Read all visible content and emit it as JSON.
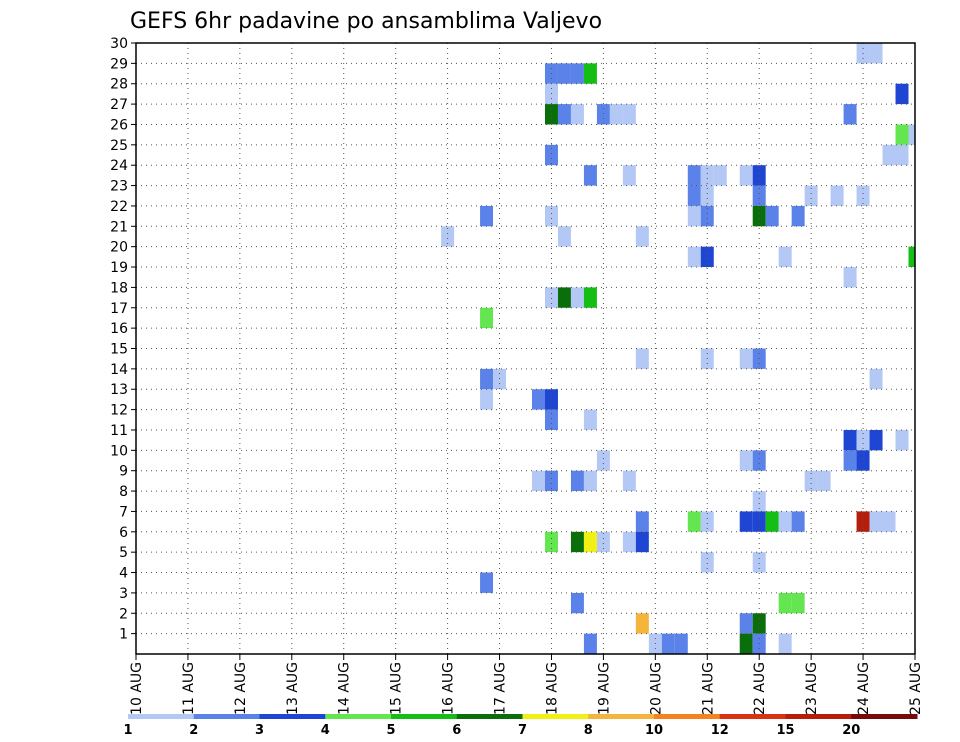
{
  "chart_data": {
    "type": "heatmap",
    "title": "GEFS 6hr padavine po ansamblima Valjevo",
    "xlabel": "",
    "ylabel": "",
    "x_tick_labels": [
      "10 AUG",
      "11 AUG",
      "12 AUG",
      "13 AUG",
      "14 AUG",
      "15 AUG",
      "16 AUG",
      "17 AUG",
      "18 AUG",
      "19 AUG",
      "20 AUG",
      "21 AUG",
      "22 AUG",
      "23 AUG",
      "24 AUG",
      "25 AUG"
    ],
    "xlim": [
      0,
      15
    ],
    "y_tick_labels": [
      "1",
      "2",
      "3",
      "4",
      "5",
      "6",
      "7",
      "8",
      "9",
      "10",
      "11",
      "12",
      "13",
      "14",
      "15",
      "16",
      "17",
      "18",
      "19",
      "20",
      "21",
      "22",
      "23",
      "24",
      "25",
      "26",
      "27",
      "28",
      "29",
      "30"
    ],
    "ylim": [
      0,
      30
    ],
    "grid": true,
    "step_days": 0.25,
    "colorbar": {
      "labels": [
        "1",
        "2",
        "3",
        "4",
        "5",
        "6",
        "7",
        "8",
        "10",
        "12",
        "15",
        "20"
      ],
      "colors": [
        "#b4c8f5",
        "#5a82e8",
        "#1e46d2",
        "#64e650",
        "#14be14",
        "#0a6e0a",
        "#f0f014",
        "#f5b43c",
        "#f5821e",
        "#dc3214",
        "#b41e0a",
        "#780a0a"
      ]
    },
    "cells": [
      {
        "x": 14.0,
        "y": 30,
        "level": 1
      },
      {
        "x": 14.25,
        "y": 30,
        "level": 1
      },
      {
        "x": 8.0,
        "y": 29,
        "level": 2
      },
      {
        "x": 8.25,
        "y": 29,
        "level": 2
      },
      {
        "x": 8.5,
        "y": 29,
        "level": 2
      },
      {
        "x": 8.75,
        "y": 29,
        "level": 5
      },
      {
        "x": 8.0,
        "y": 28,
        "level": 1
      },
      {
        "x": 14.75,
        "y": 28,
        "level": 3
      },
      {
        "x": 8.0,
        "y": 27,
        "level": 6
      },
      {
        "x": 8.25,
        "y": 27,
        "level": 2
      },
      {
        "x": 8.5,
        "y": 27,
        "level": 1
      },
      {
        "x": 9.0,
        "y": 27,
        "level": 2
      },
      {
        "x": 9.25,
        "y": 27,
        "level": 1
      },
      {
        "x": 9.5,
        "y": 27,
        "level": 1
      },
      {
        "x": 13.75,
        "y": 27,
        "level": 2
      },
      {
        "x": 14.75,
        "y": 26,
        "level": 4
      },
      {
        "x": 15.0,
        "y": 26,
        "level": 1
      },
      {
        "x": 8.0,
        "y": 25,
        "level": 2
      },
      {
        "x": 14.5,
        "y": 25,
        "level": 1
      },
      {
        "x": 14.75,
        "y": 25,
        "level": 1
      },
      {
        "x": 8.75,
        "y": 24,
        "level": 2
      },
      {
        "x": 9.5,
        "y": 24,
        "level": 1
      },
      {
        "x": 10.75,
        "y": 24,
        "level": 2
      },
      {
        "x": 11.0,
        "y": 24,
        "level": 1
      },
      {
        "x": 11.25,
        "y": 24,
        "level": 1
      },
      {
        "x": 11.75,
        "y": 24,
        "level": 1
      },
      {
        "x": 12.0,
        "y": 24,
        "level": 3
      },
      {
        "x": 10.75,
        "y": 23,
        "level": 2
      },
      {
        "x": 11.0,
        "y": 23,
        "level": 1
      },
      {
        "x": 12.0,
        "y": 23,
        "level": 2
      },
      {
        "x": 13.0,
        "y": 23,
        "level": 1
      },
      {
        "x": 13.5,
        "y": 23,
        "level": 1
      },
      {
        "x": 14.0,
        "y": 23,
        "level": 1
      },
      {
        "x": 6.75,
        "y": 22,
        "level": 2
      },
      {
        "x": 8.0,
        "y": 22,
        "level": 1
      },
      {
        "x": 10.75,
        "y": 22,
        "level": 1
      },
      {
        "x": 11.0,
        "y": 22,
        "level": 2
      },
      {
        "x": 12.0,
        "y": 22,
        "level": 6
      },
      {
        "x": 12.25,
        "y": 22,
        "level": 2
      },
      {
        "x": 12.75,
        "y": 22,
        "level": 2
      },
      {
        "x": 6.0,
        "y": 21,
        "level": 1
      },
      {
        "x": 8.25,
        "y": 21,
        "level": 1
      },
      {
        "x": 9.75,
        "y": 21,
        "level": 1
      },
      {
        "x": 10.75,
        "y": 20,
        "level": 1
      },
      {
        "x": 11.0,
        "y": 20,
        "level": 3
      },
      {
        "x": 12.5,
        "y": 20,
        "level": 1
      },
      {
        "x": 15.0,
        "y": 20,
        "level": 5
      },
      {
        "x": 13.75,
        "y": 19,
        "level": 1
      },
      {
        "x": 8.0,
        "y": 18,
        "level": 1
      },
      {
        "x": 8.25,
        "y": 18,
        "level": 6
      },
      {
        "x": 8.5,
        "y": 18,
        "level": 1
      },
      {
        "x": 8.75,
        "y": 18,
        "level": 5
      },
      {
        "x": 6.75,
        "y": 17,
        "level": 4
      },
      {
        "x": 9.75,
        "y": 15,
        "level": 1
      },
      {
        "x": 11.0,
        "y": 15,
        "level": 1
      },
      {
        "x": 11.75,
        "y": 15,
        "level": 1
      },
      {
        "x": 12.0,
        "y": 15,
        "level": 2
      },
      {
        "x": 6.75,
        "y": 14,
        "level": 2
      },
      {
        "x": 7.0,
        "y": 14,
        "level": 1
      },
      {
        "x": 14.25,
        "y": 14,
        "level": 1
      },
      {
        "x": 6.75,
        "y": 13,
        "level": 1
      },
      {
        "x": 7.75,
        "y": 13,
        "level": 2
      },
      {
        "x": 8.0,
        "y": 13,
        "level": 3
      },
      {
        "x": 8.0,
        "y": 12,
        "level": 2
      },
      {
        "x": 8.75,
        "y": 12,
        "level": 1
      },
      {
        "x": 13.75,
        "y": 11,
        "level": 3
      },
      {
        "x": 14.0,
        "y": 11,
        "level": 1
      },
      {
        "x": 14.25,
        "y": 11,
        "level": 3
      },
      {
        "x": 14.75,
        "y": 11,
        "level": 1
      },
      {
        "x": 9.0,
        "y": 10,
        "level": 1
      },
      {
        "x": 11.75,
        "y": 10,
        "level": 1
      },
      {
        "x": 12.0,
        "y": 10,
        "level": 2
      },
      {
        "x": 13.75,
        "y": 10,
        "level": 2
      },
      {
        "x": 14.0,
        "y": 10,
        "level": 3
      },
      {
        "x": 7.75,
        "y": 9,
        "level": 1
      },
      {
        "x": 8.0,
        "y": 9,
        "level": 2
      },
      {
        "x": 8.5,
        "y": 9,
        "level": 2
      },
      {
        "x": 8.75,
        "y": 9,
        "level": 1
      },
      {
        "x": 9.5,
        "y": 9,
        "level": 1
      },
      {
        "x": 13.0,
        "y": 9,
        "level": 1
      },
      {
        "x": 13.25,
        "y": 9,
        "level": 1
      },
      {
        "x": 12.0,
        "y": 8,
        "level": 1
      },
      {
        "x": 9.75,
        "y": 7,
        "level": 2
      },
      {
        "x": 10.75,
        "y": 7,
        "level": 4
      },
      {
        "x": 11.0,
        "y": 7,
        "level": 1
      },
      {
        "x": 11.75,
        "y": 7,
        "level": 3
      },
      {
        "x": 12.0,
        "y": 7,
        "level": 3
      },
      {
        "x": 12.25,
        "y": 7,
        "level": 5
      },
      {
        "x": 12.5,
        "y": 7,
        "level": 1
      },
      {
        "x": 12.75,
        "y": 7,
        "level": 2
      },
      {
        "x": 14.0,
        "y": 7,
        "level": 11
      },
      {
        "x": 14.25,
        "y": 7,
        "level": 1
      },
      {
        "x": 14.5,
        "y": 7,
        "level": 1
      },
      {
        "x": 8.0,
        "y": 6,
        "level": 4
      },
      {
        "x": 8.5,
        "y": 6,
        "level": 6
      },
      {
        "x": 8.75,
        "y": 6,
        "level": 7
      },
      {
        "x": 9.0,
        "y": 6,
        "level": 1
      },
      {
        "x": 9.5,
        "y": 6,
        "level": 1
      },
      {
        "x": 9.75,
        "y": 6,
        "level": 3
      },
      {
        "x": 11.0,
        "y": 5,
        "level": 1
      },
      {
        "x": 12.0,
        "y": 5,
        "level": 1
      },
      {
        "x": 6.75,
        "y": 4,
        "level": 2
      },
      {
        "x": 8.5,
        "y": 3,
        "level": 2
      },
      {
        "x": 12.5,
        "y": 3,
        "level": 4
      },
      {
        "x": 12.75,
        "y": 3,
        "level": 4
      },
      {
        "x": 9.75,
        "y": 2,
        "level": 8
      },
      {
        "x": 11.75,
        "y": 2,
        "level": 2
      },
      {
        "x": 12.0,
        "y": 2,
        "level": 6
      },
      {
        "x": 8.75,
        "y": 1,
        "level": 2
      },
      {
        "x": 10.0,
        "y": 1,
        "level": 1
      },
      {
        "x": 10.25,
        "y": 1,
        "level": 2
      },
      {
        "x": 10.5,
        "y": 1,
        "level": 2
      },
      {
        "x": 11.75,
        "y": 1,
        "level": 6
      },
      {
        "x": 12.0,
        "y": 1,
        "level": 2
      },
      {
        "x": 12.5,
        "y": 1,
        "level": 1
      }
    ]
  }
}
